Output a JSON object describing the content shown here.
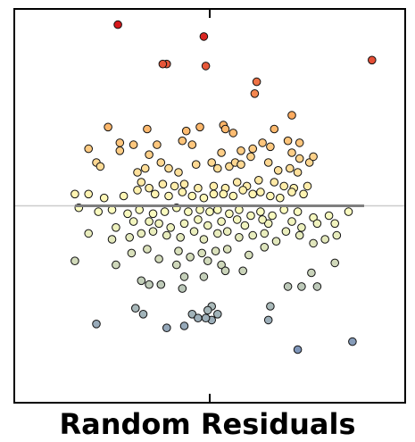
{
  "chart_data": {
    "type": "scatter",
    "title": "Random Residuals",
    "xlabel": "",
    "ylabel": "",
    "xlim": [
      -1.0,
      1.0
    ],
    "ylim": [
      -1.0,
      1.0
    ],
    "grid": false,
    "legend": "none",
    "axes": {
      "ticks": "center-only",
      "zero_line": true
    },
    "fit_line": {
      "x": [
        -0.69,
        0.79
      ],
      "y": [
        0.0,
        0.0
      ]
    },
    "points": [
      {
        "x": -0.47,
        "y": 0.92
      },
      {
        "x": -0.03,
        "y": 0.86
      },
      {
        "x": 0.83,
        "y": 0.74
      },
      {
        "x": -0.22,
        "y": 0.72
      },
      {
        "x": -0.24,
        "y": 0.72
      },
      {
        "x": -0.02,
        "y": 0.71
      },
      {
        "x": 0.24,
        "y": 0.63
      },
      {
        "x": 0.23,
        "y": 0.57
      },
      {
        "x": 0.42,
        "y": 0.46
      },
      {
        "x": -0.32,
        "y": 0.39
      },
      {
        "x": -0.52,
        "y": 0.4
      },
      {
        "x": -0.46,
        "y": 0.32
      },
      {
        "x": -0.46,
        "y": 0.28
      },
      {
        "x": -0.39,
        "y": 0.31
      },
      {
        "x": -0.31,
        "y": 0.26
      },
      {
        "x": -0.12,
        "y": 0.38
      },
      {
        "x": -0.05,
        "y": 0.4
      },
      {
        "x": 0.07,
        "y": 0.41
      },
      {
        "x": 0.08,
        "y": 0.39
      },
      {
        "x": 0.12,
        "y": 0.37
      },
      {
        "x": 0.27,
        "y": 0.32
      },
      {
        "x": 0.4,
        "y": 0.33
      },
      {
        "x": 0.33,
        "y": 0.39
      },
      {
        "x": 0.46,
        "y": 0.32
      },
      {
        "x": 0.42,
        "y": 0.27
      },
      {
        "x": -0.27,
        "y": 0.31
      },
      {
        "x": -0.14,
        "y": 0.33
      },
      {
        "x": -0.09,
        "y": 0.31
      },
      {
        "x": 0.06,
        "y": 0.27
      },
      {
        "x": 0.16,
        "y": 0.28
      },
      {
        "x": 0.22,
        "y": 0.29
      },
      {
        "x": 0.31,
        "y": 0.3
      },
      {
        "x": -0.62,
        "y": 0.29
      },
      {
        "x": -0.58,
        "y": 0.22
      },
      {
        "x": -0.56,
        "y": 0.2
      },
      {
        "x": -0.37,
        "y": 0.17
      },
      {
        "x": -0.33,
        "y": 0.19
      },
      {
        "x": -0.25,
        "y": 0.22
      },
      {
        "x": -0.21,
        "y": 0.19
      },
      {
        "x": -0.16,
        "y": 0.17
      },
      {
        "x": -0.07,
        "y": 0.21
      },
      {
        "x": 0.01,
        "y": 0.22
      },
      {
        "x": 0.04,
        "y": 0.19
      },
      {
        "x": 0.1,
        "y": 0.2
      },
      {
        "x": 0.13,
        "y": 0.22
      },
      {
        "x": 0.16,
        "y": 0.21
      },
      {
        "x": 0.21,
        "y": 0.25
      },
      {
        "x": 0.3,
        "y": 0.22
      },
      {
        "x": 0.35,
        "y": 0.18
      },
      {
        "x": 0.41,
        "y": 0.19
      },
      {
        "x": 0.45,
        "y": 0.17
      },
      {
        "x": 0.51,
        "y": 0.22
      },
      {
        "x": 0.46,
        "y": 0.24
      },
      {
        "x": 0.53,
        "y": 0.25
      },
      {
        "x": -0.35,
        "y": 0.12
      },
      {
        "x": -0.31,
        "y": 0.09
      },
      {
        "x": -0.24,
        "y": 0.11
      },
      {
        "x": -0.18,
        "y": 0.1
      },
      {
        "x": -0.13,
        "y": 0.11
      },
      {
        "x": -0.06,
        "y": 0.09
      },
      {
        "x": 0.02,
        "y": 0.1
      },
      {
        "x": 0.08,
        "y": 0.09
      },
      {
        "x": 0.14,
        "y": 0.12
      },
      {
        "x": 0.19,
        "y": 0.1
      },
      {
        "x": 0.25,
        "y": 0.13
      },
      {
        "x": 0.33,
        "y": 0.12
      },
      {
        "x": 0.38,
        "y": 0.1
      },
      {
        "x": 0.43,
        "y": 0.09
      },
      {
        "x": 0.5,
        "y": 0.1
      },
      {
        "x": -0.69,
        "y": 0.06
      },
      {
        "x": -0.62,
        "y": 0.06
      },
      {
        "x": -0.54,
        "y": 0.04
      },
      {
        "x": -0.44,
        "y": 0.05
      },
      {
        "x": -0.37,
        "y": 0.08
      },
      {
        "x": -0.28,
        "y": 0.06
      },
      {
        "x": -0.21,
        "y": 0.05
      },
      {
        "x": -0.14,
        "y": 0.07
      },
      {
        "x": -0.09,
        "y": 0.05
      },
      {
        "x": -0.03,
        "y": 0.04
      },
      {
        "x": 0.02,
        "y": 0.06
      },
      {
        "x": 0.07,
        "y": 0.06
      },
      {
        "x": 0.12,
        "y": 0.05
      },
      {
        "x": 0.17,
        "y": 0.08
      },
      {
        "x": 0.22,
        "y": 0.06
      },
      {
        "x": 0.26,
        "y": 0.07
      },
      {
        "x": 0.31,
        "y": 0.05
      },
      {
        "x": 0.36,
        "y": 0.04
      },
      {
        "x": 0.42,
        "y": 0.07
      },
      {
        "x": 0.48,
        "y": 0.06
      },
      {
        "x": -0.67,
        "y": -0.01
      },
      {
        "x": -0.57,
        "y": -0.03
      },
      {
        "x": -0.5,
        "y": -0.02
      },
      {
        "x": -0.42,
        "y": -0.04
      },
      {
        "x": -0.36,
        "y": -0.02
      },
      {
        "x": -0.29,
        "y": -0.04
      },
      {
        "x": -0.23,
        "y": -0.03
      },
      {
        "x": -0.17,
        "y": -0.01
      },
      {
        "x": -0.11,
        "y": -0.03
      },
      {
        "x": -0.05,
        "y": -0.02
      },
      {
        "x": 0.0,
        "y": -0.03
      },
      {
        "x": 0.04,
        "y": -0.02
      },
      {
        "x": 0.1,
        "y": -0.04
      },
      {
        "x": 0.15,
        "y": -0.02
      },
      {
        "x": 0.21,
        "y": -0.05
      },
      {
        "x": 0.26,
        "y": -0.03
      },
      {
        "x": 0.32,
        "y": -0.05
      },
      {
        "x": 0.38,
        "y": -0.02
      },
      {
        "x": 0.45,
        "y": -0.03
      },
      {
        "x": 0.53,
        "y": -0.06
      },
      {
        "x": 0.61,
        "y": -0.05
      },
      {
        "x": 0.71,
        "y": -0.03
      },
      {
        "x": 0.55,
        "y": -0.09
      },
      {
        "x": 0.47,
        "y": -0.11
      },
      {
        "x": 0.42,
        "y": -0.08
      },
      {
        "x": 0.3,
        "y": -0.09
      },
      {
        "x": 0.27,
        "y": -0.07
      },
      {
        "x": 0.18,
        "y": -0.1
      },
      {
        "x": 0.14,
        "y": -0.07
      },
      {
        "x": 0.06,
        "y": -0.08
      },
      {
        "x": -0.01,
        "y": -0.1
      },
      {
        "x": -0.06,
        "y": -0.07
      },
      {
        "x": -0.13,
        "y": -0.09
      },
      {
        "x": -0.2,
        "y": -0.11
      },
      {
        "x": -0.26,
        "y": -0.09
      },
      {
        "x": -0.31,
        "y": -0.08
      },
      {
        "x": -0.39,
        "y": -0.08
      },
      {
        "x": -0.48,
        "y": -0.11
      },
      {
        "x": 0.64,
        "y": -0.09
      },
      {
        "x": -0.62,
        "y": -0.14
      },
      {
        "x": -0.5,
        "y": -0.17
      },
      {
        "x": -0.41,
        "y": -0.16
      },
      {
        "x": -0.35,
        "y": -0.14
      },
      {
        "x": -0.29,
        "y": -0.13
      },
      {
        "x": -0.22,
        "y": -0.15
      },
      {
        "x": -0.15,
        "y": -0.16
      },
      {
        "x": -0.08,
        "y": -0.13
      },
      {
        "x": -0.03,
        "y": -0.17
      },
      {
        "x": 0.04,
        "y": -0.14
      },
      {
        "x": 0.09,
        "y": -0.13
      },
      {
        "x": 0.15,
        "y": -0.16
      },
      {
        "x": 0.22,
        "y": -0.15
      },
      {
        "x": 0.28,
        "y": -0.14
      },
      {
        "x": 0.34,
        "y": -0.18
      },
      {
        "x": 0.39,
        "y": -0.13
      },
      {
        "x": 0.46,
        "y": -0.15
      },
      {
        "x": 0.53,
        "y": -0.19
      },
      {
        "x": 0.59,
        "y": -0.17
      },
      {
        "x": 0.65,
        "y": -0.15
      },
      {
        "x": -0.4,
        "y": -0.24
      },
      {
        "x": -0.32,
        "y": -0.22
      },
      {
        "x": -0.16,
        "y": -0.23
      },
      {
        "x": -0.1,
        "y": -0.26
      },
      {
        "x": -0.04,
        "y": -0.24
      },
      {
        "x": 0.03,
        "y": -0.23
      },
      {
        "x": 0.09,
        "y": -0.22
      },
      {
        "x": 0.2,
        "y": -0.25
      },
      {
        "x": 0.28,
        "y": -0.21
      },
      {
        "x": -0.69,
        "y": -0.28
      },
      {
        "x": -0.48,
        "y": -0.3
      },
      {
        "x": -0.26,
        "y": -0.27
      },
      {
        "x": -0.17,
        "y": -0.3
      },
      {
        "x": -0.01,
        "y": -0.28
      },
      {
        "x": 0.06,
        "y": -0.3
      },
      {
        "x": 0.64,
        "y": -0.29
      },
      {
        "x": 0.17,
        "y": -0.33
      },
      {
        "x": 0.52,
        "y": -0.34
      },
      {
        "x": -0.13,
        "y": -0.36
      },
      {
        "x": -0.03,
        "y": -0.36
      },
      {
        "x": 0.08,
        "y": -0.33
      },
      {
        "x": -0.35,
        "y": -0.38
      },
      {
        "x": -0.31,
        "y": -0.4
      },
      {
        "x": -0.25,
        "y": -0.4
      },
      {
        "x": -0.14,
        "y": -0.42
      },
      {
        "x": 0.4,
        "y": -0.41
      },
      {
        "x": 0.47,
        "y": -0.41
      },
      {
        "x": 0.55,
        "y": -0.41
      },
      {
        "x": -0.38,
        "y": -0.52
      },
      {
        "x": 0.01,
        "y": -0.51
      },
      {
        "x": -0.34,
        "y": -0.55
      },
      {
        "x": -0.09,
        "y": -0.55
      },
      {
        "x": -0.01,
        "y": -0.53
      },
      {
        "x": 0.04,
        "y": -0.55
      },
      {
        "x": 0.31,
        "y": -0.51
      },
      {
        "x": -0.58,
        "y": -0.6
      },
      {
        "x": -0.22,
        "y": -0.62
      },
      {
        "x": -0.13,
        "y": -0.61
      },
      {
        "x": 0.01,
        "y": -0.58
      },
      {
        "x": 0.73,
        "y": -0.69
      },
      {
        "x": 0.45,
        "y": -0.73
      },
      {
        "x": 0.3,
        "y": -0.58
      },
      {
        "x": -0.06,
        "y": -0.57
      },
      {
        "x": -0.02,
        "y": -0.57
      }
    ]
  },
  "colors": {
    "palette_high_to_low": [
      "#d7191c",
      "#fdae61",
      "#ffffbf",
      "#bfcbb9",
      "#7a92b9"
    ],
    "fit_line": "#7f7f7f",
    "zero_line": "#cccccc",
    "frame": "#000000"
  }
}
